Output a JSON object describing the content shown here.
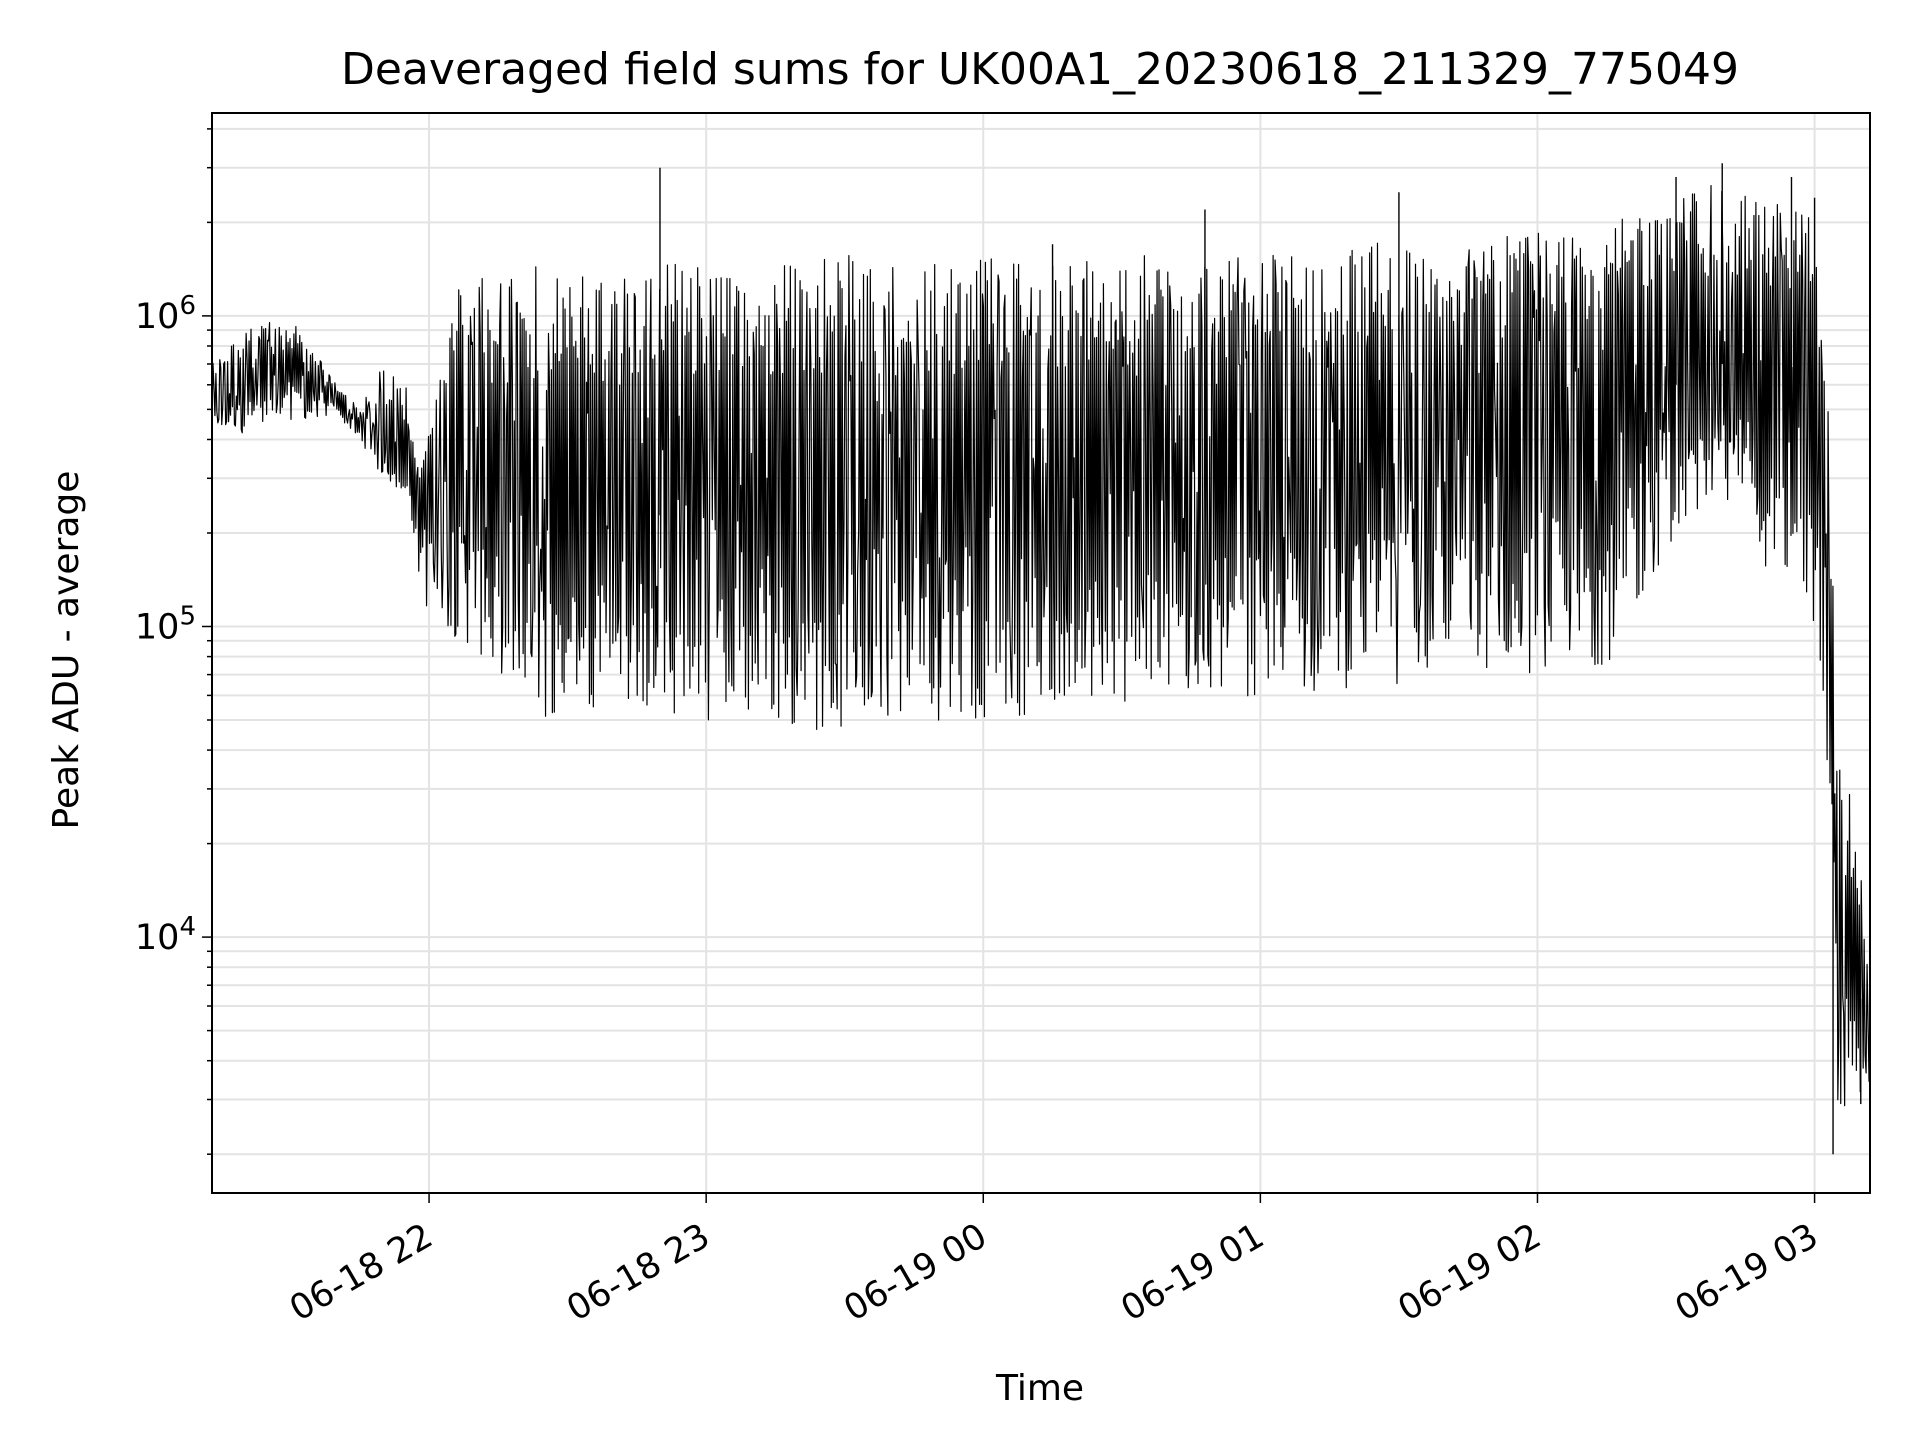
{
  "chart_data": {
    "type": "line",
    "title": "Deaveraged field sums for UK00A1_20230618_211329_775049",
    "xlabel": "Time",
    "ylabel": "Peak ADU - average",
    "yscale": "log",
    "xlim": [
      "06-18 21:13",
      "06-19 03:12"
    ],
    "ylim": [
      1500,
      4500000
    ],
    "grid": true,
    "legend": "none",
    "line_color": "#000000",
    "x_ticks": [
      "06-18 22",
      "06-18 23",
      "06-19 00",
      "06-19 01",
      "06-19 02",
      "06-19 03"
    ],
    "y_ticks": [
      {
        "base": "10",
        "exp": "4"
      },
      {
        "base": "10",
        "exp": "5"
      },
      {
        "base": "10",
        "exp": "6"
      }
    ],
    "series": [
      {
        "x": [
          "06-18 21:13",
          "06-18 21:20",
          "06-18 21:30",
          "06-18 21:40",
          "06-18 21:45",
          "06-18 21:50",
          "06-18 21:55",
          "06-18 21:58",
          "06-18 22:05",
          "06-18 22:15",
          "06-18 22:25",
          "06-18 22:35",
          "06-18 22:45",
          "06-18 22:55",
          "06-18 23:05",
          "06-18 23:15",
          "06-18 23:25",
          "06-18 23:35",
          "06-18 23:45",
          "06-18 23:55",
          "06-19 00:05",
          "06-19 00:15",
          "06-19 00:30",
          "06-19 00:45",
          "06-19 01:00",
          "06-19 01:15",
          "06-19 01:30",
          "06-19 01:45",
          "06-19 02:00",
          "06-19 02:15",
          "06-19 02:30",
          "06-19 02:40",
          "06-19 02:50",
          "06-19 02:55",
          "06-19 03:00",
          "06-19 03:03",
          "06-19 03:05",
          "06-19 03:08",
          "06-19 03:12"
        ],
        "y": [
          550000,
          620000,
          680000,
          560000,
          450000,
          380000,
          340000,
          300000,
          500000,
          300000,
          250000,
          250000,
          200000,
          260000,
          250000,
          250000,
          260000,
          270000,
          280000,
          260000,
          250000,
          270000,
          300000,
          320000,
          350000,
          380000,
          420000,
          450000,
          480000,
          520000,
          600000,
          700000,
          650000,
          500000,
          400000,
          120000,
          20000,
          10000,
          4000
        ],
        "hi": [
          700000,
          900000,
          1000000,
          600000,
          500000,
          700000,
          600000,
          300000,
          1200000,
          1400000,
          1500000,
          1550000,
          1500000,
          1500000,
          1500000,
          1550000,
          1600000,
          1550000,
          1550000,
          1600000,
          1500000,
          1600000,
          1550000,
          1600000,
          1550000,
          1650000,
          1750000,
          1800000,
          1900000,
          2000000,
          2500000,
          2700000,
          2300000,
          2400000,
          2200000,
          500000,
          40000,
          30000,
          9000
        ],
        "lo": [
          400000,
          420000,
          450000,
          480000,
          400000,
          300000,
          260000,
          100000,
          90000,
          70000,
          50000,
          55000,
          55000,
          50000,
          50000,
          50000,
          45000,
          48000,
          50000,
          48000,
          50000,
          55000,
          55000,
          58000,
          60000,
          62000,
          65000,
          70000,
          70000,
          75000,
          200000,
          250000,
          150000,
          120000,
          100000,
          30000,
          2500,
          2800,
          3000
        ],
        "spikes": [
          {
            "x": "06-18 22:50",
            "y": 3000000
          },
          {
            "x": "06-19 00:15",
            "y": 1700000
          },
          {
            "x": "06-19 00:48",
            "y": 2200000
          },
          {
            "x": "06-19 01:30",
            "y": 2500000
          },
          {
            "x": "06-19 02:30",
            "y": 2800000
          },
          {
            "x": "06-19 02:40",
            "y": 3100000
          },
          {
            "x": "06-19 02:55",
            "y": 2800000
          },
          {
            "x": "06-19 03:00",
            "y": 2400000
          },
          {
            "x": "06-19 03:04",
            "y": 2000
          },
          {
            "x": "06-19 03:10",
            "y": 2900
          }
        ]
      }
    ]
  }
}
